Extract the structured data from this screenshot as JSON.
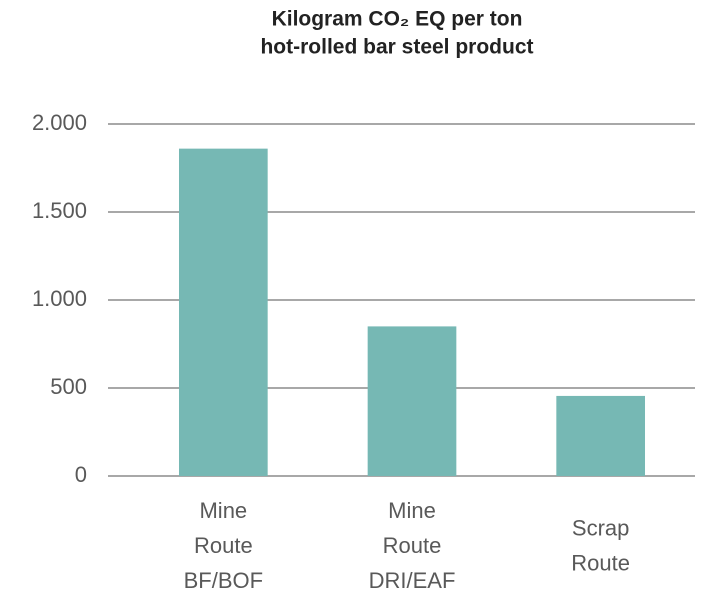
{
  "chart_data": {
    "type": "bar",
    "title": [
      "Kilogram CO₂ EQ per ton",
      "hot-rolled bar steel product"
    ],
    "categories": [
      [
        "Mine",
        "Route",
        "BF/BOF"
      ],
      [
        "Mine",
        "Route",
        "DRI/EAF"
      ],
      [
        "Scrap",
        "Route"
      ]
    ],
    "values": [
      1860,
      850,
      455
    ],
    "color": "#76b8b4",
    "ylim": [
      0,
      2000
    ],
    "yticks": [
      0,
      500,
      {
        "value": 1000,
        "label": "1.000"
      },
      {
        "value": 1500,
        "label": "1.500"
      },
      {
        "value": 2000,
        "label": "2.000"
      }
    ],
    "grid": true
  }
}
